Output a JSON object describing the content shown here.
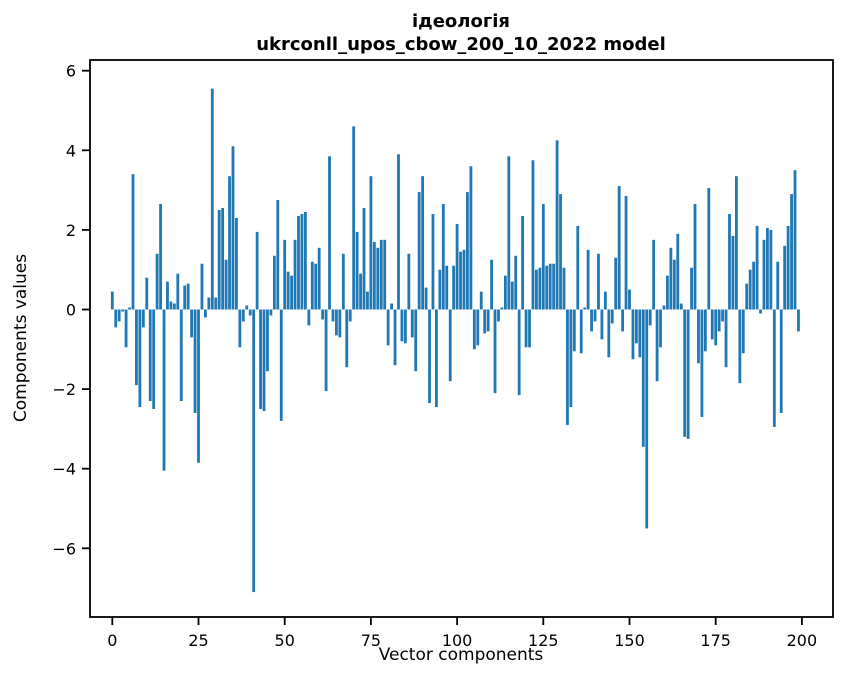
{
  "chart_data": {
    "type": "bar",
    "title": "ідеологія",
    "subtitle": "ukrconll_upos_cbow_200_10_2022 model",
    "xlabel": "Vector components",
    "ylabel": "Components values",
    "n_components": 200,
    "bar_color": "#1f77b4",
    "axis_color": "#000000",
    "background_color": "#ffffff",
    "grid": "off",
    "legend": "none",
    "xticks": [
      0,
      25,
      50,
      75,
      100,
      125,
      150,
      175,
      200
    ],
    "xtick_labels": [
      "0",
      "25",
      "50",
      "75",
      "100",
      "125",
      "150",
      "175",
      "200"
    ],
    "yticks": [
      6,
      4,
      2,
      0,
      -2,
      -4,
      -6
    ],
    "ytick_labels": [
      "6",
      "4",
      "2",
      "0",
      "−2",
      "−4",
      "−6"
    ],
    "xlim": [
      -8,
      208
    ],
    "ylim": [
      -7.75,
      6.3
    ],
    "values": [
      0.45,
      -0.45,
      -0.3,
      -0.05,
      -0.95,
      0.05,
      3.4,
      -1.9,
      -2.45,
      -0.45,
      0.8,
      -2.3,
      -2.5,
      1.4,
      2.65,
      -4.05,
      0.7,
      0.2,
      0.15,
      0.9,
      -2.3,
      0.6,
      0.65,
      -0.7,
      -2.6,
      -3.85,
      1.15,
      -0.2,
      0.3,
      5.55,
      0.3,
      2.5,
      2.55,
      1.25,
      3.35,
      4.1,
      2.3,
      -0.95,
      -0.3,
      0.1,
      -0.15,
      -7.1,
      1.95,
      -2.5,
      -2.55,
      -1.55,
      -0.15,
      1.35,
      2.75,
      -2.8,
      1.75,
      0.95,
      0.85,
      1.75,
      2.35,
      2.4,
      2.45,
      -0.4,
      1.2,
      1.15,
      1.55,
      -0.25,
      -2.05,
      3.85,
      -0.3,
      -0.65,
      -0.7,
      1.4,
      -1.45,
      -0.3,
      4.6,
      1.95,
      0.9,
      2.55,
      0.45,
      3.35,
      1.7,
      1.55,
      1.75,
      1.75,
      -0.9,
      0.15,
      -1.4,
      3.9,
      -0.8,
      -0.85,
      1.4,
      -0.7,
      -1.55,
      2.95,
      3.35,
      0.55,
      -2.35,
      2.4,
      -2.45,
      1.0,
      2.65,
      1.1,
      -1.8,
      1.1,
      2.15,
      1.45,
      1.5,
      2.95,
      3.6,
      -1.0,
      -0.9,
      0.45,
      -0.6,
      -0.55,
      1.25,
      -2.1,
      -0.3,
      0.05,
      0.85,
      3.85,
      0.7,
      1.35,
      -2.15,
      2.35,
      -0.95,
      -0.95,
      3.75,
      1.0,
      1.05,
      2.65,
      1.1,
      1.15,
      1.15,
      4.25,
      2.9,
      1.05,
      -2.9,
      -2.45,
      -1.05,
      2.1,
      -1.1,
      0.05,
      1.5,
      -0.55,
      -0.3,
      1.4,
      -0.75,
      0.45,
      -1.2,
      -0.35,
      1.3,
      3.1,
      -0.55,
      2.85,
      0.5,
      -1.25,
      -0.85,
      -1.2,
      -3.45,
      -5.5,
      -0.4,
      1.75,
      -1.8,
      -0.95,
      0.1,
      0.85,
      1.55,
      1.25,
      1.9,
      0.15,
      -3.2,
      -3.25,
      1.05,
      2.65,
      -1.35,
      -2.7,
      -1.05,
      3.05,
      -0.75,
      -0.9,
      -0.55,
      -0.3,
      -1.45,
      2.4,
      1.85,
      3.35,
      -1.85,
      -1.1,
      0.65,
      1.0,
      1.2,
      2.1,
      -0.1,
      1.75,
      2.05,
      2.0,
      -2.95,
      1.2,
      -2.6,
      1.6,
      2.1,
      2.9,
      3.5,
      -0.55
    ]
  }
}
